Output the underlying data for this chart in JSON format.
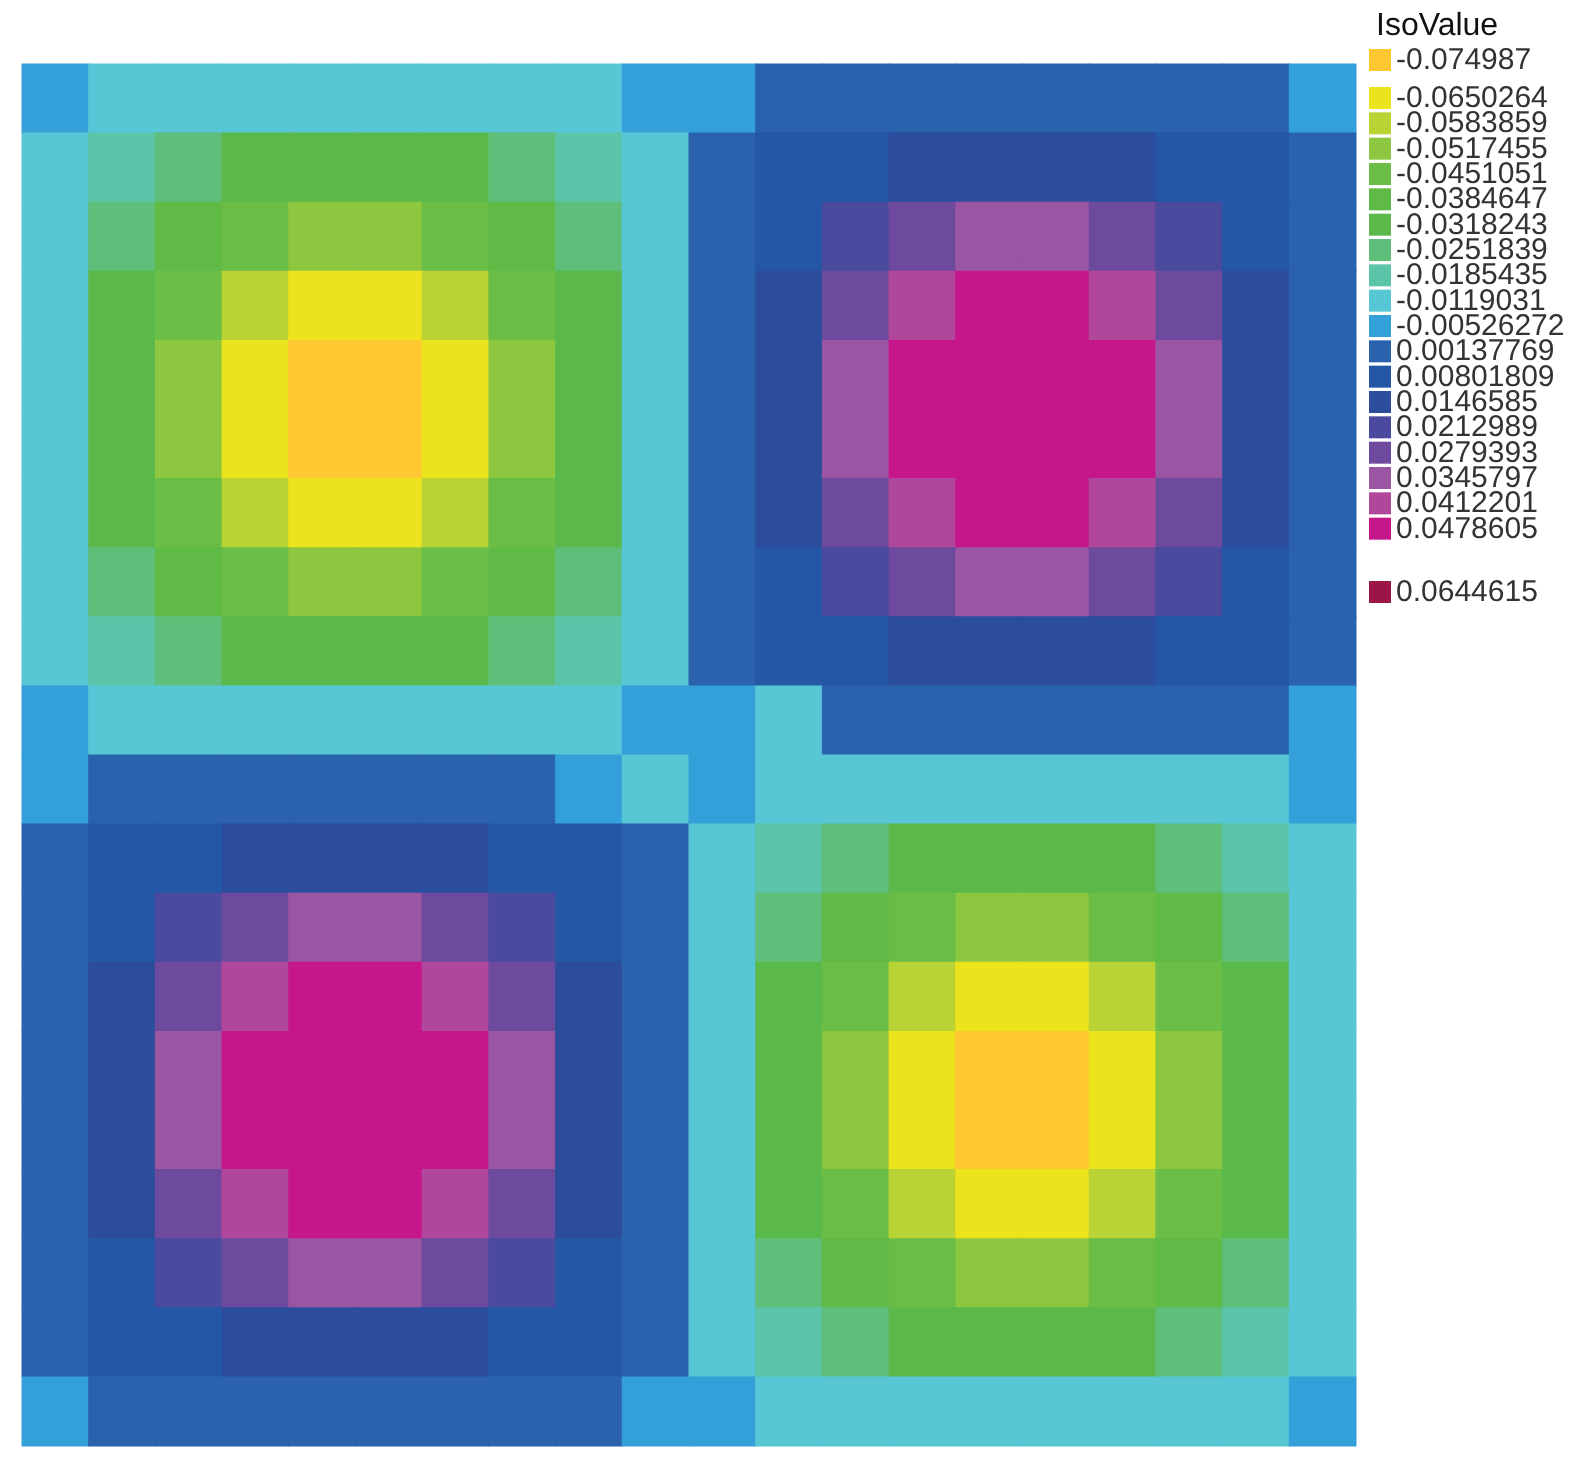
{
  "chart_data": {
    "type": "heatmap",
    "clabel": "IsoValue",
    "clim": [
      -0.074987,
      0.0644615
    ],
    "categories": [
      null,
      null,
      null,
      null,
      null,
      null,
      null,
      null,
      null,
      null,
      null,
      null,
      null,
      null,
      null,
      null,
      null,
      null,
      null,
      null
    ],
    "y_categories": [
      null,
      null,
      null,
      null,
      null,
      null,
      null,
      null,
      null,
      null,
      null,
      null,
      null,
      null,
      null,
      null,
      null,
      null,
      null,
      null
    ],
    "cticks": [
      -0.074987,
      -0.0650264,
      -0.0583859,
      -0.0517455,
      -0.0451051,
      -0.0384647,
      -0.0318243,
      -0.0251839,
      -0.0185435,
      -0.0119031,
      -0.00526272,
      0.00137769,
      0.00801809,
      0.0146585,
      0.0212989,
      0.0279393,
      0.0345797,
      0.0412201,
      0.0478605,
      0.0644615
    ],
    "colors": [
      "#ffc832",
      "#ebe31c",
      "#b9d335",
      "#8dc63f",
      "#6abd45",
      "#5fbb46",
      "#5ab94a",
      "#5fbf7a",
      "#5cc4a8",
      "#57c7d5",
      "#33a0d9",
      "#2a62ad",
      "#2557a7",
      "#2b4d9c",
      "#4a4a9e",
      "#6d4a9e",
      "#9a56a2",
      "#b0479a",
      "#c6178a",
      "#9b1648"
    ],
    "cells": [
      [
        -0.00526272,
        -0.0119031,
        -0.0119031,
        -0.0119031,
        -0.0119031,
        -0.0119031,
        -0.0119031,
        -0.0119031,
        -0.0119031,
        -0.00526272,
        -0.00526272,
        0.00137769,
        0.00137769,
        0.00137769,
        0.00137769,
        0.00137769,
        0.00137769,
        0.00137769,
        0.00137769,
        -0.00526272
      ],
      [
        -0.0119031,
        -0.0185435,
        -0.0251839,
        -0.0318243,
        -0.0318243,
        -0.0318243,
        -0.0318243,
        -0.0251839,
        -0.0185435,
        -0.0119031,
        0.00137769,
        0.00801809,
        0.00801809,
        0.0146585,
        0.0146585,
        0.0146585,
        0.0146585,
        0.00801809,
        0.00801809,
        0.00137769
      ],
      [
        -0.0119031,
        -0.0251839,
        -0.0384647,
        -0.0451051,
        -0.0517455,
        -0.0517455,
        -0.0451051,
        -0.0384647,
        -0.0251839,
        -0.0119031,
        0.00137769,
        0.00801809,
        0.0212989,
        0.0279393,
        0.0345797,
        0.0345797,
        0.0279393,
        0.0212989,
        0.00801809,
        0.00137769
      ],
      [
        -0.0119031,
        -0.0318243,
        -0.0451051,
        -0.0583859,
        -0.0650264,
        -0.0650264,
        -0.0583859,
        -0.0451051,
        -0.0318243,
        -0.0119031,
        0.00137769,
        0.0146585,
        0.0279393,
        0.0412201,
        0.0478605,
        0.0478605,
        0.0412201,
        0.0279393,
        0.0146585,
        0.00137769
      ],
      [
        -0.0119031,
        -0.0318243,
        -0.0517455,
        -0.0650264,
        -0.074987,
        -0.074987,
        -0.0650264,
        -0.0517455,
        -0.0318243,
        -0.0119031,
        0.00137769,
        0.0146585,
        0.0345797,
        0.0478605,
        0.0478605,
        0.0478605,
        0.0478605,
        0.0345797,
        0.0146585,
        0.00137769
      ],
      [
        -0.0119031,
        -0.0318243,
        -0.0517455,
        -0.0650264,
        -0.074987,
        -0.074987,
        -0.0650264,
        -0.0517455,
        -0.0318243,
        -0.0119031,
        0.00137769,
        0.0146585,
        0.0345797,
        0.0478605,
        0.0478605,
        0.0478605,
        0.0478605,
        0.0345797,
        0.0146585,
        0.00137769
      ],
      [
        -0.0119031,
        -0.0318243,
        -0.0451051,
        -0.0583859,
        -0.0650264,
        -0.0650264,
        -0.0583859,
        -0.0451051,
        -0.0318243,
        -0.0119031,
        0.00137769,
        0.0146585,
        0.0279393,
        0.0412201,
        0.0478605,
        0.0478605,
        0.0412201,
        0.0279393,
        0.0146585,
        0.00137769
      ],
      [
        -0.0119031,
        -0.0251839,
        -0.0384647,
        -0.0451051,
        -0.0517455,
        -0.0517455,
        -0.0451051,
        -0.0384647,
        -0.0251839,
        -0.0119031,
        0.00137769,
        0.00801809,
        0.0212989,
        0.0279393,
        0.0345797,
        0.0345797,
        0.0279393,
        0.0212989,
        0.00801809,
        0.00137769
      ],
      [
        -0.0119031,
        -0.0185435,
        -0.0251839,
        -0.0318243,
        -0.0318243,
        -0.0318243,
        -0.0318243,
        -0.0251839,
        -0.0185435,
        -0.0119031,
        0.00137769,
        0.00801809,
        0.00801809,
        0.0146585,
        0.0146585,
        0.0146585,
        0.0146585,
        0.00801809,
        0.00801809,
        0.00137769
      ],
      [
        -0.00526272,
        -0.0119031,
        -0.0119031,
        -0.0119031,
        -0.0119031,
        -0.0119031,
        -0.0119031,
        -0.0119031,
        -0.0119031,
        -0.00526272,
        -0.00526272,
        -0.0119031,
        0.00137769,
        0.00137769,
        0.00137769,
        0.00137769,
        0.00137769,
        0.00137769,
        0.00137769,
        -0.00526272
      ],
      [
        -0.00526272,
        0.00137769,
        0.00137769,
        0.00137769,
        0.00137769,
        0.00137769,
        0.00137769,
        0.00137769,
        -0.00526272,
        -0.0119031,
        -0.00526272,
        -0.0119031,
        -0.0119031,
        -0.0119031,
        -0.0119031,
        -0.0119031,
        -0.0119031,
        -0.0119031,
        -0.0119031,
        -0.00526272
      ],
      [
        0.00137769,
        0.00801809,
        0.00801809,
        0.0146585,
        0.0146585,
        0.0146585,
        0.0146585,
        0.00801809,
        0.00801809,
        0.00137769,
        -0.0119031,
        -0.0185435,
        -0.0251839,
        -0.0318243,
        -0.0318243,
        -0.0318243,
        -0.0318243,
        -0.0251839,
        -0.0185435,
        -0.0119031
      ],
      [
        0.00137769,
        0.00801809,
        0.0212989,
        0.0279393,
        0.0345797,
        0.0345797,
        0.0279393,
        0.0212989,
        0.00801809,
        0.00137769,
        -0.0119031,
        -0.0251839,
        -0.0384647,
        -0.0451051,
        -0.0517455,
        -0.0517455,
        -0.0451051,
        -0.0384647,
        -0.0251839,
        -0.0119031
      ],
      [
        0.00137769,
        0.0146585,
        0.0279393,
        0.0412201,
        0.0478605,
        0.0478605,
        0.0412201,
        0.0279393,
        0.0146585,
        0.00137769,
        -0.0119031,
        -0.0318243,
        -0.0451051,
        -0.0583859,
        -0.0650264,
        -0.0650264,
        -0.0583859,
        -0.0451051,
        -0.0318243,
        -0.0119031
      ],
      [
        0.00137769,
        0.0146585,
        0.0345797,
        0.0478605,
        0.0478605,
        0.0478605,
        0.0478605,
        0.0345797,
        0.0146585,
        0.00137769,
        -0.0119031,
        -0.0318243,
        -0.0517455,
        -0.0650264,
        -0.074987,
        -0.074987,
        -0.0650264,
        -0.0517455,
        -0.0318243,
        -0.0119031
      ],
      [
        0.00137769,
        0.0146585,
        0.0345797,
        0.0478605,
        0.0478605,
        0.0478605,
        0.0478605,
        0.0345797,
        0.0146585,
        0.00137769,
        -0.0119031,
        -0.0318243,
        -0.0517455,
        -0.0650264,
        -0.074987,
        -0.074987,
        -0.0650264,
        -0.0517455,
        -0.0318243,
        -0.0119031
      ],
      [
        0.00137769,
        0.0146585,
        0.0279393,
        0.0412201,
        0.0478605,
        0.0478605,
        0.0412201,
        0.0279393,
        0.0146585,
        0.00137769,
        -0.0119031,
        -0.0318243,
        -0.0451051,
        -0.0583859,
        -0.0650264,
        -0.0650264,
        -0.0583859,
        -0.0451051,
        -0.0318243,
        -0.0119031
      ],
      [
        0.00137769,
        0.00801809,
        0.0212989,
        0.0279393,
        0.0345797,
        0.0345797,
        0.0279393,
        0.0212989,
        0.00801809,
        0.00137769,
        -0.0119031,
        -0.0251839,
        -0.0384647,
        -0.0451051,
        -0.0517455,
        -0.0517455,
        -0.0451051,
        -0.0384647,
        -0.0251839,
        -0.0119031
      ],
      [
        0.00137769,
        0.00801809,
        0.00801809,
        0.0146585,
        0.0146585,
        0.0146585,
        0.0146585,
        0.00801809,
        0.00801809,
        0.00137769,
        -0.0119031,
        -0.0185435,
        -0.0251839,
        -0.0318243,
        -0.0318243,
        -0.0318243,
        -0.0318243,
        -0.0251839,
        -0.0185435,
        -0.0119031
      ],
      [
        -0.00526272,
        0.00137769,
        0.00137769,
        0.00137769,
        0.00137769,
        0.00137769,
        0.00137769,
        0.00137769,
        0.00137769,
        -0.00526272,
        -0.00526272,
        -0.0119031,
        -0.0119031,
        -0.0119031,
        -0.0119031,
        -0.0119031,
        -0.0119031,
        -0.0119031,
        -0.0119031,
        -0.00526272
      ]
    ]
  }
}
